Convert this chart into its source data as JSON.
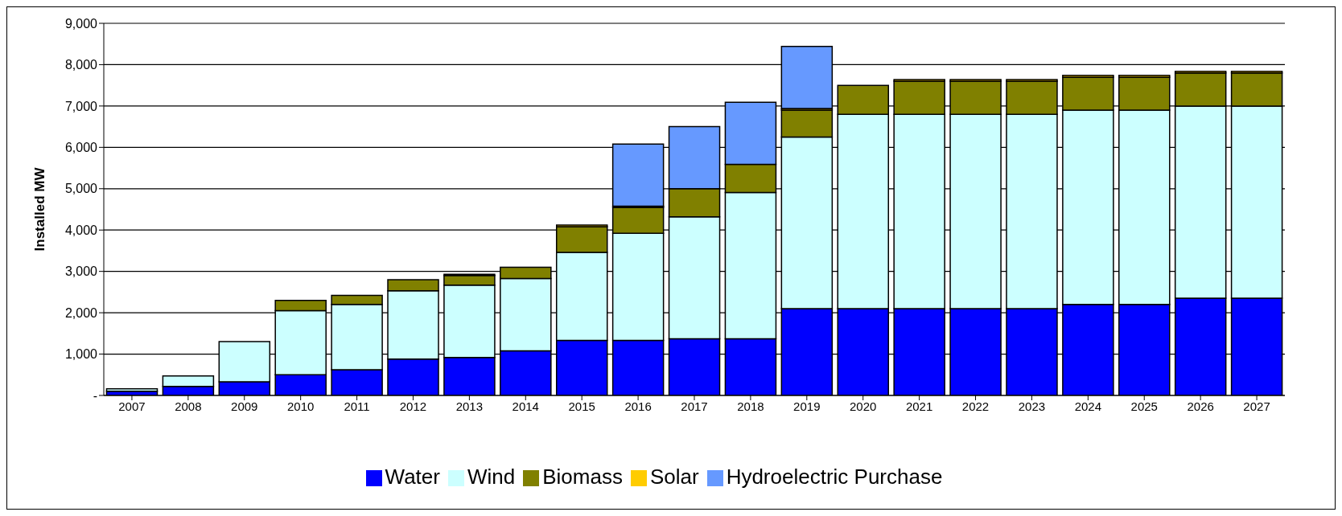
{
  "chart_data": {
    "type": "bar",
    "stacked": true,
    "ylabel": "Installed MW",
    "categories": [
      "2007",
      "2008",
      "2009",
      "2010",
      "2011",
      "2012",
      "2013",
      "2014",
      "2015",
      "2016",
      "2017",
      "2018",
      "2019",
      "2020",
      "2021",
      "2022",
      "2023",
      "2024",
      "2025",
      "2026",
      "2027"
    ],
    "series": [
      {
        "name": "Water",
        "color": "#0000ff",
        "values": [
          100,
          220,
          330,
          500,
          620,
          880,
          920,
          1080,
          1330,
          1330,
          1370,
          1370,
          2100,
          2100,
          2100,
          2100,
          2100,
          2200,
          2200,
          2350,
          2350
        ]
      },
      {
        "name": "Wind",
        "color": "#ccffff",
        "values": [
          60,
          250,
          970,
          1550,
          1580,
          1650,
          1750,
          1750,
          2130,
          2590,
          2950,
          3540,
          4150,
          4700,
          4700,
          4700,
          4700,
          4700,
          4700,
          4650,
          4650
        ]
      },
      {
        "name": "Biomass",
        "color": "#808000",
        "values": [
          0,
          0,
          0,
          250,
          220,
          270,
          230,
          270,
          620,
          630,
          680,
          680,
          650,
          700,
          800,
          800,
          800,
          800,
          800,
          800,
          800
        ]
      },
      {
        "name": "Solar",
        "color": "#ffcc00",
        "values": [
          0,
          0,
          0,
          0,
          0,
          0,
          30,
          0,
          40,
          30,
          0,
          0,
          40,
          0,
          40,
          40,
          40,
          40,
          40,
          40,
          40
        ]
      },
      {
        "name": "Hydroelectric Purchase",
        "color": "#6699ff",
        "values": [
          0,
          0,
          0,
          0,
          0,
          0,
          0,
          0,
          0,
          1500,
          1500,
          1500,
          1500,
          0,
          0,
          0,
          0,
          0,
          0,
          0,
          0
        ]
      }
    ],
    "ylim": [
      0,
      9000
    ],
    "yticks": [
      {
        "value": 0,
        "label": "-"
      },
      {
        "value": 1000,
        "label": "1,000"
      },
      {
        "value": 2000,
        "label": "2,000"
      },
      {
        "value": 3000,
        "label": "3,000"
      },
      {
        "value": 4000,
        "label": "4,000"
      },
      {
        "value": 5000,
        "label": "5,000"
      },
      {
        "value": 6000,
        "label": "6,000"
      },
      {
        "value": 7000,
        "label": "7,000"
      },
      {
        "value": 8000,
        "label": "8,000"
      },
      {
        "value": 9000,
        "label": "9,000"
      }
    ],
    "grid": "y",
    "legend": "bottom"
  }
}
